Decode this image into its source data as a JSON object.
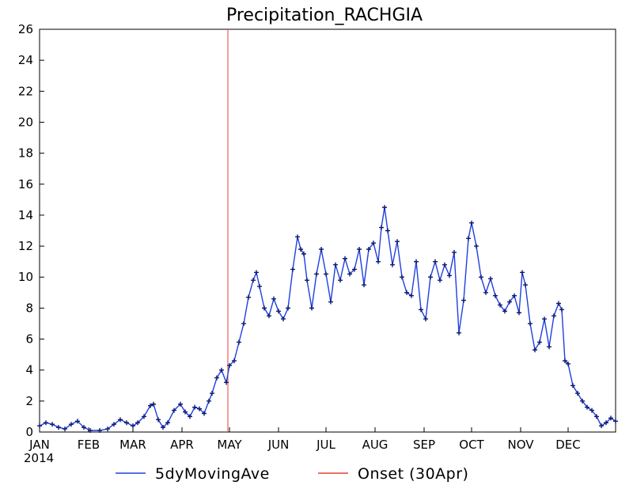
{
  "chart_data": {
    "type": "line",
    "title": "Precipitation_RACHGIA",
    "xlabel": "",
    "ylabel": "",
    "year_label": "2014",
    "x_ticks": [
      "JAN",
      "FEB",
      "MAR",
      "APR",
      "MAY",
      "JUN",
      "JUL",
      "AUG",
      "SEP",
      "OCT",
      "NOV",
      "DEC"
    ],
    "x_tick_dates": [
      "2014-01-01",
      "2014-02-01",
      "2014-03-01",
      "2014-04-01",
      "2014-05-01",
      "2014-06-01",
      "2014-07-01",
      "2014-08-01",
      "2014-09-01",
      "2014-10-01",
      "2014-11-01",
      "2014-12-01"
    ],
    "xlim": [
      "2014-01-01",
      "2014-12-31"
    ],
    "ylim": [
      0,
      26
    ],
    "y_ticks": [
      0,
      2,
      4,
      6,
      8,
      10,
      12,
      14,
      16,
      18,
      20,
      22,
      24,
      26
    ],
    "grid": false,
    "legend_position": "bottom",
    "series": [
      {
        "name": "5dyMovingAve",
        "color": "#1f3fe0",
        "marker": "plus",
        "points": [
          [
            "2014-01-01",
            0.4
          ],
          [
            "2014-01-05",
            0.6
          ],
          [
            "2014-01-09",
            0.5
          ],
          [
            "2014-01-13",
            0.3
          ],
          [
            "2014-01-17",
            0.2
          ],
          [
            "2014-01-21",
            0.5
          ],
          [
            "2014-01-25",
            0.7
          ],
          [
            "2014-01-29",
            0.3
          ],
          [
            "2014-02-02",
            0.1
          ],
          [
            "2014-02-08",
            0.1
          ],
          [
            "2014-02-13",
            0.2
          ],
          [
            "2014-02-17",
            0.5
          ],
          [
            "2014-02-21",
            0.8
          ],
          [
            "2014-02-25",
            0.6
          ],
          [
            "2014-03-01",
            0.4
          ],
          [
            "2014-03-04",
            0.6
          ],
          [
            "2014-03-08",
            1.0
          ],
          [
            "2014-03-12",
            1.7
          ],
          [
            "2014-03-14",
            1.8
          ],
          [
            "2014-03-17",
            0.8
          ],
          [
            "2014-03-20",
            0.3
          ],
          [
            "2014-03-23",
            0.6
          ],
          [
            "2014-03-27",
            1.4
          ],
          [
            "2014-03-31",
            1.8
          ],
          [
            "2014-04-03",
            1.3
          ],
          [
            "2014-04-06",
            1.0
          ],
          [
            "2014-04-09",
            1.6
          ],
          [
            "2014-04-12",
            1.5
          ],
          [
            "2014-04-15",
            1.2
          ],
          [
            "2014-04-18",
            2.0
          ],
          [
            "2014-04-20",
            2.5
          ],
          [
            "2014-04-23",
            3.5
          ],
          [
            "2014-04-26",
            4.0
          ],
          [
            "2014-04-29",
            3.2
          ],
          [
            "2014-05-01",
            4.3
          ],
          [
            "2014-05-04",
            4.6
          ],
          [
            "2014-05-07",
            5.8
          ],
          [
            "2014-05-10",
            7.0
          ],
          [
            "2014-05-13",
            8.7
          ],
          [
            "2014-05-16",
            9.8
          ],
          [
            "2014-05-18",
            10.3
          ],
          [
            "2014-05-20",
            9.4
          ],
          [
            "2014-05-23",
            8.0
          ],
          [
            "2014-05-26",
            7.5
          ],
          [
            "2014-05-29",
            8.6
          ],
          [
            "2014-06-01",
            7.8
          ],
          [
            "2014-06-04",
            7.3
          ],
          [
            "2014-06-07",
            8.0
          ],
          [
            "2014-06-10",
            10.5
          ],
          [
            "2014-06-13",
            12.6
          ],
          [
            "2014-06-15",
            11.8
          ],
          [
            "2014-06-17",
            11.5
          ],
          [
            "2014-06-19",
            9.8
          ],
          [
            "2014-06-22",
            8.0
          ],
          [
            "2014-06-25",
            10.2
          ],
          [
            "2014-06-28",
            11.8
          ],
          [
            "2014-07-01",
            10.2
          ],
          [
            "2014-07-04",
            8.4
          ],
          [
            "2014-07-07",
            10.8
          ],
          [
            "2014-07-10",
            9.8
          ],
          [
            "2014-07-13",
            11.2
          ],
          [
            "2014-07-16",
            10.2
          ],
          [
            "2014-07-19",
            10.5
          ],
          [
            "2014-07-22",
            11.8
          ],
          [
            "2014-07-25",
            9.5
          ],
          [
            "2014-07-28",
            11.8
          ],
          [
            "2014-07-31",
            12.2
          ],
          [
            "2014-08-03",
            11.0
          ],
          [
            "2014-08-05",
            13.2
          ],
          [
            "2014-08-07",
            14.5
          ],
          [
            "2014-08-09",
            13.0
          ],
          [
            "2014-08-12",
            10.8
          ],
          [
            "2014-08-15",
            12.3
          ],
          [
            "2014-08-18",
            10.0
          ],
          [
            "2014-08-21",
            9.0
          ],
          [
            "2014-08-24",
            8.8
          ],
          [
            "2014-08-27",
            11.0
          ],
          [
            "2014-08-30",
            7.9
          ],
          [
            "2014-09-02",
            7.3
          ],
          [
            "2014-09-05",
            10.0
          ],
          [
            "2014-09-08",
            11.0
          ],
          [
            "2014-09-11",
            9.8
          ],
          [
            "2014-09-14",
            10.8
          ],
          [
            "2014-09-17",
            10.1
          ],
          [
            "2014-09-20",
            11.6
          ],
          [
            "2014-09-23",
            6.4
          ],
          [
            "2014-09-26",
            8.5
          ],
          [
            "2014-09-29",
            12.5
          ],
          [
            "2014-10-01",
            13.5
          ],
          [
            "2014-10-04",
            12.0
          ],
          [
            "2014-10-07",
            10.0
          ],
          [
            "2014-10-10",
            9.0
          ],
          [
            "2014-10-13",
            9.9
          ],
          [
            "2014-10-16",
            8.8
          ],
          [
            "2014-10-19",
            8.2
          ],
          [
            "2014-10-22",
            7.8
          ],
          [
            "2014-10-25",
            8.4
          ],
          [
            "2014-10-28",
            8.8
          ],
          [
            "2014-10-31",
            7.7
          ],
          [
            "2014-11-02",
            10.3
          ],
          [
            "2014-11-04",
            9.5
          ],
          [
            "2014-11-07",
            7.0
          ],
          [
            "2014-11-10",
            5.3
          ],
          [
            "2014-11-13",
            5.8
          ],
          [
            "2014-11-16",
            7.3
          ],
          [
            "2014-11-19",
            5.5
          ],
          [
            "2014-11-22",
            7.5
          ],
          [
            "2014-11-25",
            8.3
          ],
          [
            "2014-11-27",
            7.9
          ],
          [
            "2014-11-29",
            4.6
          ],
          [
            "2014-12-01",
            4.4
          ],
          [
            "2014-12-04",
            3.0
          ],
          [
            "2014-12-07",
            2.5
          ],
          [
            "2014-12-10",
            2.0
          ],
          [
            "2014-12-13",
            1.6
          ],
          [
            "2014-12-16",
            1.4
          ],
          [
            "2014-12-19",
            1.0
          ],
          [
            "2014-12-22",
            0.4
          ],
          [
            "2014-12-25",
            0.6
          ],
          [
            "2014-12-28",
            0.9
          ],
          [
            "2014-12-31",
            0.7
          ]
        ]
      },
      {
        "name": "Onset (30Apr)",
        "color": "#e8403a",
        "marker": "none",
        "vertical_line_at": "2014-04-30"
      }
    ]
  }
}
